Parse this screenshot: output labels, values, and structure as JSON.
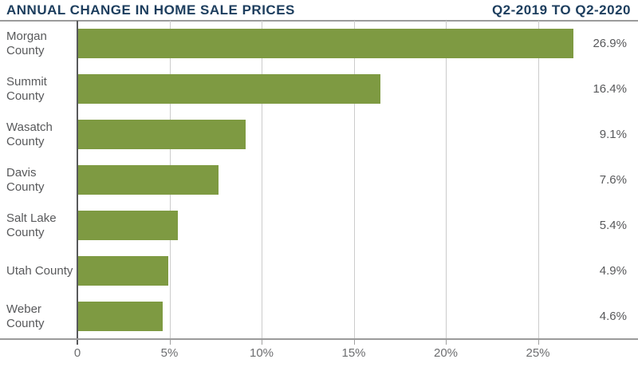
{
  "header": {
    "title": "ANNUAL CHANGE IN HOME SALE PRICES",
    "subtitle": "Q2-2019 TO Q2-2020"
  },
  "chart_data": {
    "type": "bar",
    "orientation": "horizontal",
    "title": "ANNUAL CHANGE IN HOME SALE PRICES",
    "subtitle": "Q2-2019 TO Q2-2020",
    "categories": [
      "Morgan County",
      "Summit County",
      "Wasatch County",
      "Davis County",
      "Salt Lake County",
      "Utah County",
      "Weber County"
    ],
    "values": [
      26.9,
      16.4,
      9.1,
      7.6,
      5.4,
      4.9,
      4.6
    ],
    "value_labels": [
      "26.9%",
      "16.4%",
      "9.1%",
      "7.6%",
      "5.4%",
      "4.9%",
      "4.6%"
    ],
    "x_ticks": [
      {
        "value": 0,
        "label": "0"
      },
      {
        "value": 5,
        "label": "5%"
      },
      {
        "value": 10,
        "label": "10%"
      },
      {
        "value": 15,
        "label": "15%"
      },
      {
        "value": 20,
        "label": "20%"
      },
      {
        "value": 25,
        "label": "25%"
      }
    ],
    "xlim": [
      0,
      30
    ],
    "grid": true,
    "legend": "none"
  },
  "colors": {
    "bar": "#7e9a42",
    "header_navy": "#1d3e5e",
    "label_gray": "#58595b",
    "tick_label_gray": "#6d6e70",
    "gridline_gray": "#cccccc",
    "zero_line_gray": "#58595b",
    "frame_gray": "#9b9b9b"
  }
}
